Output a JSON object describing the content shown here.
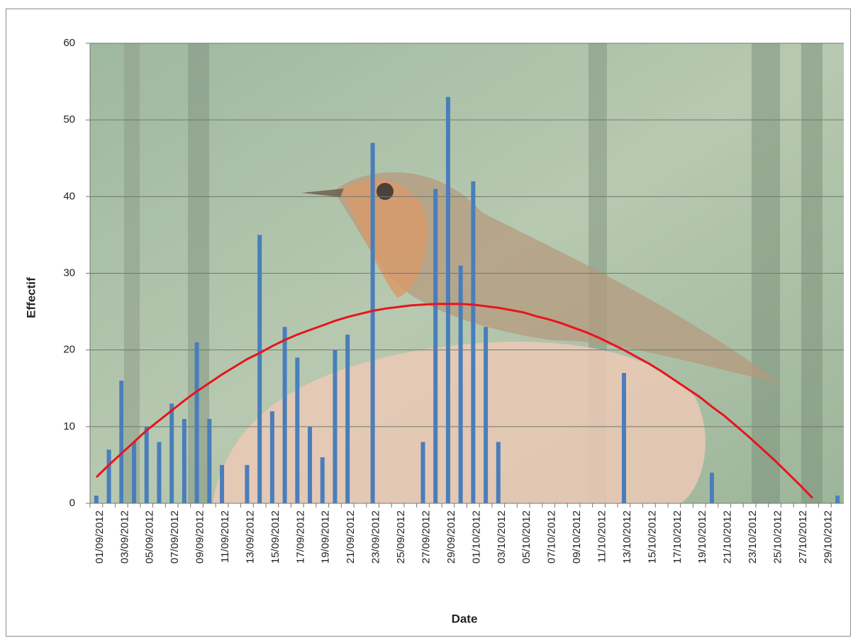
{
  "chart_data": {
    "type": "bar",
    "y_label": "Effectif",
    "x_label": "Date",
    "categories": [
      "01/09/2012",
      null,
      "03/09/2012",
      null,
      "05/09/2012",
      null,
      "07/09/2012",
      null,
      "09/09/2012",
      null,
      "11/09/2012",
      null,
      "13/09/2012",
      null,
      "15/09/2012",
      null,
      "17/09/2012",
      null,
      "19/09/2012",
      null,
      "21/09/2012",
      null,
      "23/09/2012",
      null,
      "25/09/2012",
      null,
      "27/09/2012",
      null,
      "29/09/2012",
      null,
      "01/10/2012",
      null,
      "03/10/2012",
      null,
      "05/10/2012",
      null,
      "07/10/2012",
      null,
      "09/10/2012",
      null,
      "11/10/2012",
      null,
      "13/10/2012",
      null,
      "15/10/2012",
      null,
      "17/10/2012",
      null,
      "19/10/2012",
      null,
      "21/10/2012",
      null,
      "23/10/2012",
      null,
      "25/10/2012",
      null,
      "27/10/2012",
      null,
      "29/10/2012",
      null
    ],
    "values": [
      1,
      7,
      16,
      8,
      10,
      8,
      13,
      11,
      21,
      11,
      5,
      0,
      5,
      35,
      12,
      23,
      19,
      10,
      6,
      20,
      22,
      0,
      47,
      0,
      0,
      0,
      8,
      41,
      53,
      31,
      42,
      23,
      8,
      0,
      0,
      0,
      0,
      0,
      0,
      0,
      0,
      0,
      17,
      0,
      0,
      0,
      0,
      0,
      0,
      4,
      0,
      0,
      0,
      0,
      0,
      0,
      0,
      0,
      0,
      1
    ],
    "color": "#4a7ebb",
    "trendline": {
      "color": "#e8141c",
      "values": [
        3.4,
        5.0,
        6.5,
        8.0,
        9.5,
        10.8,
        12.1,
        13.4,
        14.6,
        15.7,
        16.8,
        17.8,
        18.8,
        19.6,
        20.5,
        21.3,
        22.0,
        22.6,
        23.2,
        23.8,
        24.3,
        24.7,
        25.1,
        25.4,
        25.6,
        25.8,
        25.9,
        26.0,
        26.0,
        26.0,
        25.9,
        25.7,
        25.5,
        25.2,
        24.9,
        24.4,
        24.0,
        23.5,
        22.9,
        22.3,
        21.6,
        20.8,
        20.0,
        19.1,
        18.2,
        17.2,
        16.1,
        15.0,
        13.9,
        12.6,
        11.4,
        10.0,
        8.6,
        7.1,
        5.6,
        4.0,
        2.4,
        0.7,
        null,
        null
      ]
    },
    "ylim": [
      0,
      60
    ],
    "yticks": [
      0,
      10,
      20,
      30,
      40,
      50,
      60
    ],
    "grid": true
  }
}
